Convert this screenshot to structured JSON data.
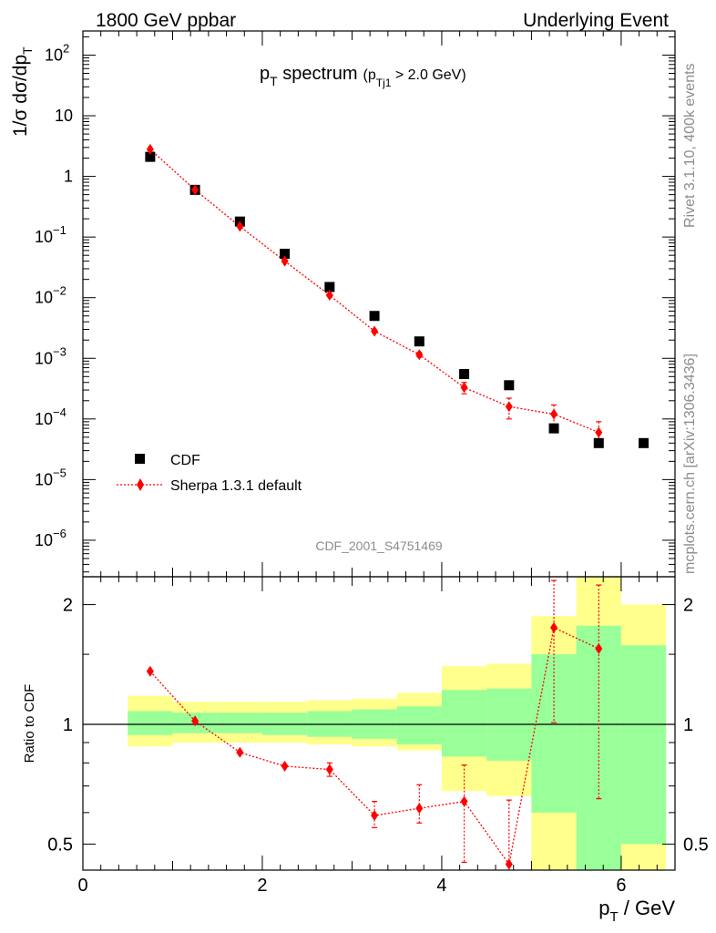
{
  "header": {
    "left": "1800 GeV ppbar",
    "right": "Underlying Event"
  },
  "side": {
    "rivet": "Rivet 3.1.10,  400k events",
    "mcplots": "mcplots.cern.ch [arXiv:1306.3436]"
  },
  "analysis_id": "CDF_2001_S4751469",
  "chart_data": [
    {
      "type": "scatter",
      "panel": "main",
      "title_main": "p",
      "title_main_sub": "T",
      "title_main_rest": " spectrum",
      "title_cut_pre": "(p",
      "title_cut_sub": "Tj1",
      "title_cut_post": " > 2.0 GeV)",
      "ylabel": "1/σ dσ/dp",
      "ylabel_sub": "T",
      "yscale": "log",
      "xlim": [
        0,
        6.6
      ],
      "ylim": [
        2.5e-07,
        250
      ],
      "yticks": [
        {
          "value": 1e-06,
          "base": "10",
          "exp": "−6"
        },
        {
          "value": 1e-05,
          "base": "10",
          "exp": "−5"
        },
        {
          "value": 0.0001,
          "base": "10",
          "exp": "−4"
        },
        {
          "value": 0.001,
          "base": "10",
          "exp": "−3"
        },
        {
          "value": 0.01,
          "base": "10",
          "exp": "−2"
        },
        {
          "value": 0.1,
          "base": "10",
          "exp": "−1"
        },
        {
          "value": 1,
          "base": "1",
          "exp": ""
        },
        {
          "value": 10,
          "base": "10",
          "exp": ""
        },
        {
          "value": 100,
          "base": "10",
          "exp": "2"
        }
      ],
      "legend_position": "lower-left",
      "series": [
        {
          "name": "CDF",
          "color": "#000000",
          "marker": "square",
          "x": [
            0.75,
            1.25,
            1.75,
            2.25,
            2.75,
            3.25,
            3.75,
            4.25,
            4.75,
            5.25,
            5.75,
            6.25
          ],
          "y": [
            2.1,
            0.6,
            0.18,
            0.053,
            0.015,
            0.005,
            0.0019,
            0.00055,
            0.00036,
            7e-05,
            4e-05,
            4e-05
          ]
        },
        {
          "name": "Sherpa 1.3.1 default",
          "color": "#ff0000",
          "marker": "diamond",
          "line": "dotted",
          "x": [
            0.75,
            1.25,
            1.75,
            2.25,
            2.75,
            3.25,
            3.75,
            4.25,
            4.75,
            5.25,
            5.75
          ],
          "y": [
            2.8,
            0.6,
            0.15,
            0.04,
            0.011,
            0.0028,
            0.00115,
            0.00033,
            0.00016,
            0.00012,
            6e-05
          ],
          "yerr_lo": [
            0,
            0,
            0,
            0,
            0,
            0,
            0.0001,
            7e-05,
            6e-05,
            4e-05,
            2e-05
          ],
          "yerr_hi": [
            0,
            0,
            0,
            0,
            0,
            0,
            0.0001,
            7e-05,
            6e-05,
            5e-05,
            3e-05
          ]
        }
      ]
    },
    {
      "type": "scatter",
      "panel": "ratio",
      "ylabel": "Ratio to CDF",
      "xlabel": "p",
      "xlabel_sub": "T",
      "xlabel_rest": " / GeV",
      "yscale": "log",
      "xlim": [
        0,
        6.6
      ],
      "ylim": [
        0.43,
        2.35
      ],
      "yticks": [
        0.5,
        1,
        2
      ],
      "xticks": [
        0,
        2,
        4,
        6
      ],
      "bands": {
        "edges": [
          0.5,
          1.0,
          1.5,
          2.0,
          2.5,
          3.0,
          3.5,
          4.0,
          4.5,
          5.0,
          5.5,
          6.0,
          6.5
        ],
        "outer_color": "#ffff8c",
        "inner_color": "#99ff99",
        "outer_lo": [
          0.88,
          0.9,
          0.9,
          0.9,
          0.89,
          0.88,
          0.86,
          0.68,
          0.66,
          0.37,
          0.37,
          0.37
        ],
        "outer_hi": [
          1.18,
          1.14,
          1.14,
          1.14,
          1.15,
          1.16,
          1.2,
          1.4,
          1.42,
          1.87,
          2.4,
          2.0
        ],
        "inner_lo": [
          0.94,
          0.95,
          0.95,
          0.94,
          0.93,
          0.92,
          0.89,
          0.83,
          0.81,
          0.6,
          0.37,
          0.5
        ],
        "inner_hi": [
          1.08,
          1.07,
          1.07,
          1.07,
          1.08,
          1.09,
          1.11,
          1.22,
          1.23,
          1.5,
          1.77,
          1.58
        ]
      },
      "series": [
        {
          "name": "Sherpa 1.3.1 default",
          "color": "#ff0000",
          "x": [
            0.75,
            1.25,
            1.75,
            2.25,
            2.75,
            3.25,
            3.75,
            4.25,
            4.75,
            5.25,
            5.75
          ],
          "y": [
            1.36,
            1.02,
            0.85,
            0.785,
            0.77,
            0.59,
            0.615,
            0.64,
            0.445,
            1.75,
            1.55
          ],
          "yerr_lo": [
            0,
            0,
            0,
            0,
            0.03,
            0.04,
            0.05,
            0.19,
            0.1,
            0.74,
            0.9
          ],
          "yerr_hi": [
            0,
            0,
            0,
            0,
            0.03,
            0.05,
            0.09,
            0.15,
            0.2,
            0.55,
            0.69
          ]
        }
      ]
    }
  ]
}
